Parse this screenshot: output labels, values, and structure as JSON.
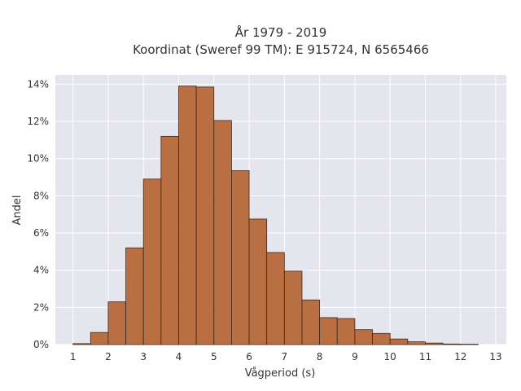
{
  "chart_data": {
    "type": "bar",
    "title_line1": "År 1979 - 2019",
    "title_line2": "Koordinat (Sweref 99 TM): E 915724, N 6565466",
    "xlabel": "Vågperiod (s)",
    "ylabel": "Andel",
    "xlim": [
      0.5,
      13.3
    ],
    "ylim": [
      0,
      14.5
    ],
    "xticks": [
      1,
      2,
      3,
      4,
      5,
      6,
      7,
      8,
      9,
      10,
      11,
      12,
      13
    ],
    "yticks": [
      0,
      2,
      4,
      6,
      8,
      10,
      12,
      14
    ],
    "ytick_format": "%",
    "grid": true,
    "bar_color": "#b4622f",
    "bar_edge_color": "#3a2a20",
    "plot_bg": "#e5e5ee",
    "bin_width": 0.5,
    "bins_start": [
      1.0,
      1.5,
      2.0,
      2.5,
      3.0,
      3.5,
      4.0,
      4.5,
      5.0,
      5.5,
      6.0,
      6.5,
      7.0,
      7.5,
      8.0,
      8.5,
      9.0,
      9.5,
      10.0,
      10.5,
      11.0,
      11.5,
      12.0
    ],
    "values": [
      0.05,
      0.65,
      2.3,
      5.2,
      8.9,
      11.2,
      13.9,
      13.85,
      12.05,
      9.35,
      6.75,
      4.95,
      3.95,
      2.4,
      1.45,
      1.4,
      0.8,
      0.6,
      0.3,
      0.15,
      0.08,
      0.03,
      0.02
    ]
  }
}
